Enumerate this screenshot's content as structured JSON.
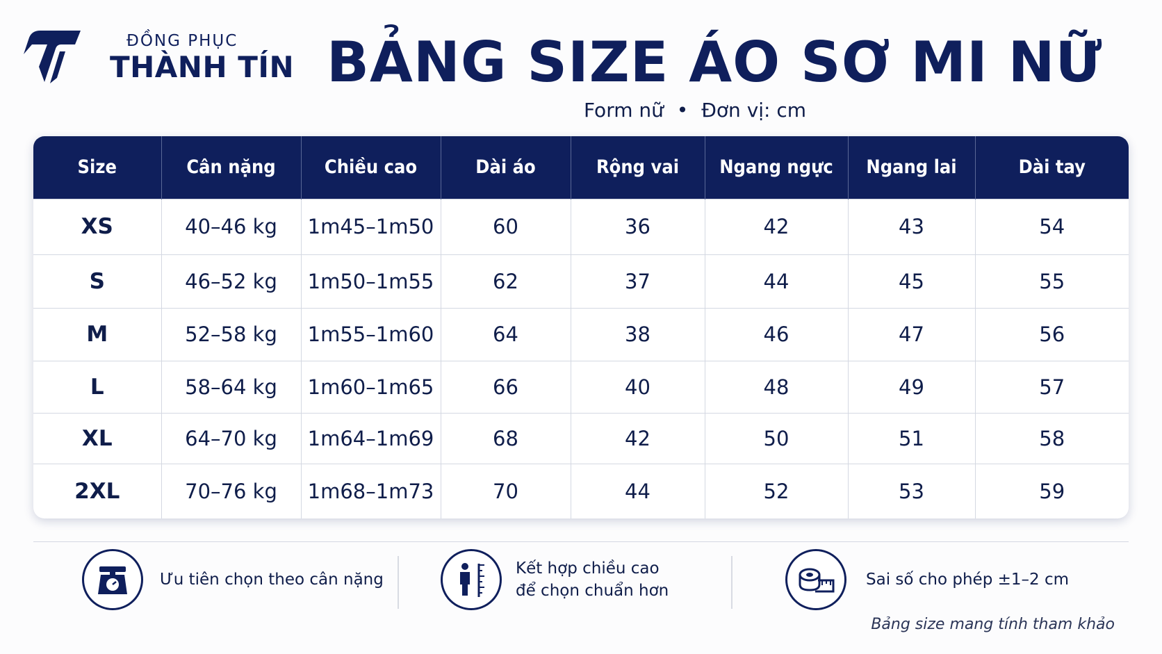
{
  "brand": {
    "top_text": "ĐỒNG PHỤC",
    "name": "THÀNH TÍN",
    "color": "#0f1f5c"
  },
  "header": {
    "title": "BẢNG SIZE ÁO SƠ MI NỮ",
    "form": "Form nữ",
    "separator": "•",
    "unit": "Đơn vị: cm"
  },
  "table": {
    "columns": [
      "Size",
      "Cân nặng",
      "Chiều cao",
      "Dài áo",
      "Rộng vai",
      "Ngang ngực",
      "Ngang lai",
      "Dài tay"
    ],
    "rows": [
      [
        "XS",
        "40–46 kg",
        "1m45–1m50",
        "60",
        "36",
        "42",
        "43",
        "54"
      ],
      [
        "S",
        "46–52 kg",
        "1m50–1m55",
        "62",
        "37",
        "44",
        "45",
        "55"
      ],
      [
        "M",
        "52–58 kg",
        "1m55–1m60",
        "64",
        "38",
        "46",
        "47",
        "56"
      ],
      [
        "L",
        "58–64 kg",
        "1m60–1m65",
        "66",
        "40",
        "48",
        "49",
        "57"
      ],
      [
        "XL",
        "64–70 kg",
        "1m64–1m69",
        "68",
        "42",
        "50",
        "51",
        "58"
      ],
      [
        "2XL",
        "70–76 kg",
        "1m68–1m73",
        "70",
        "44",
        "52",
        "53",
        "59"
      ]
    ]
  },
  "notes": [
    {
      "icon": "scale-icon",
      "line1": "Ưu tiên chọn theo cân nặng",
      "line2": ""
    },
    {
      "icon": "height-measure-icon",
      "line1": "Kết hợp chiều cao",
      "line2": "để chọn chuẩn hơn"
    },
    {
      "icon": "tape-measure-icon",
      "line1": "Sai số cho phép ±1–2 cm",
      "line2": ""
    }
  ],
  "disclaimer": "Bảng size mang tính tham khảo"
}
